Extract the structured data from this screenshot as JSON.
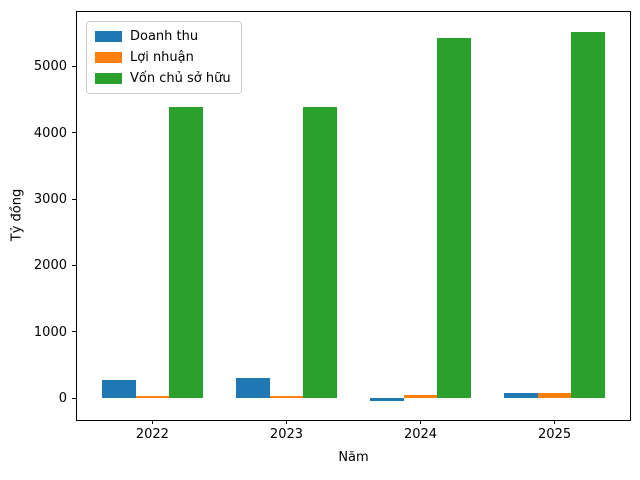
{
  "figure": {
    "background": "#ffffff",
    "spine_color": "#000000"
  },
  "chart_data": {
    "type": "bar",
    "title": "",
    "xlabel": "Năm",
    "ylabel": "Tỷ đồng",
    "categories": [
      "2022",
      "2023",
      "2024",
      "2025"
    ],
    "series": [
      {
        "name": "Doanh thu",
        "color": "#1f77b4",
        "values": [
          280,
          300,
          -45,
          70
        ]
      },
      {
        "name": "Lợi nhuận",
        "color": "#ff7f0e",
        "values": [
          25,
          25,
          40,
          80
        ]
      },
      {
        "name": "Vốn chủ sở hữu",
        "color": "#2ca02c",
        "values": [
          4390,
          4395,
          5430,
          5520
        ]
      }
    ],
    "yticks": [
      0,
      1000,
      2000,
      3000,
      4000,
      5000
    ],
    "ylim": [
      -330,
      5820
    ],
    "bar_width_fraction": 0.25,
    "grid": false,
    "legend_position": "upper left"
  }
}
